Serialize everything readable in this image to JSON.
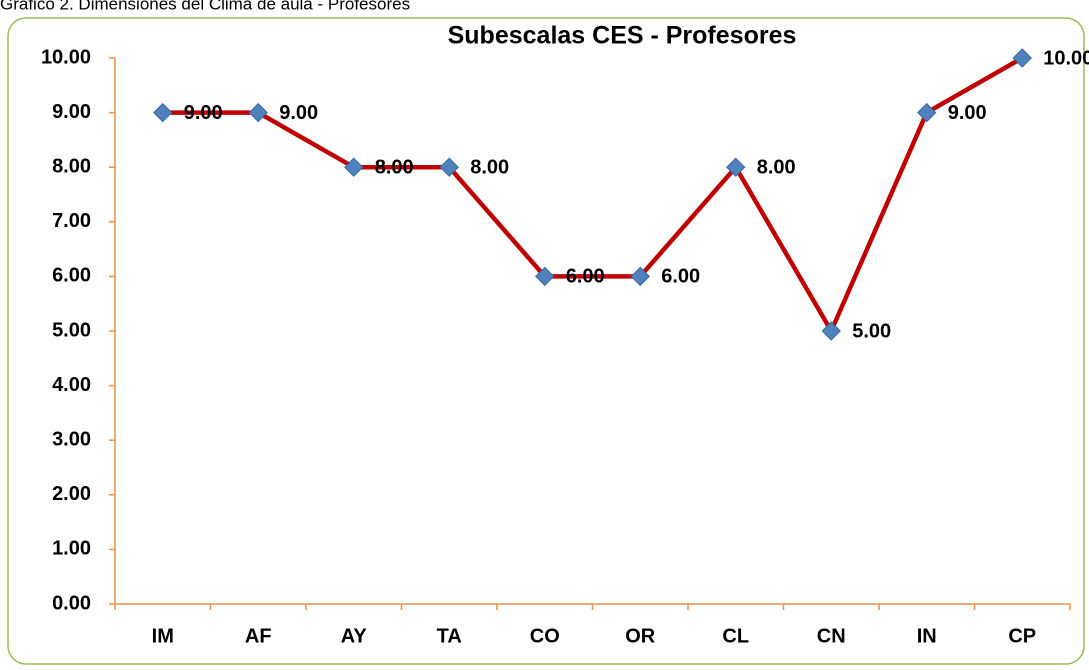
{
  "caption": "Gráfico 2. Dimensiones del Clima de aula - Profesores",
  "chart_data": {
    "type": "line",
    "title": "Subescalas CES - Profesores",
    "categories": [
      "IM",
      "AF",
      "AY",
      "TA",
      "CO",
      "OR",
      "CL",
      "CN",
      "IN",
      "CP"
    ],
    "series": [
      {
        "color": "#c00000",
        "marker_color": "#4f81bd",
        "values": [
          9,
          9,
          8,
          8,
          6,
          6,
          8,
          5,
          9,
          10
        ],
        "value_labels": [
          "9.00",
          "9.00",
          "8.00",
          "8.00",
          "6.00",
          "6.00",
          "8.00",
          "5.00",
          "9.00",
          "10.00"
        ]
      }
    ],
    "ylim": [
      0,
      10
    ],
    "yticks": [
      {
        "value": 0,
        "label": "0.00"
      },
      {
        "value": 1,
        "label": "1.00"
      },
      {
        "value": 2,
        "label": "2.00"
      },
      {
        "value": 3,
        "label": "3.00"
      },
      {
        "value": 4,
        "label": "4.00"
      },
      {
        "value": 5,
        "label": "5.00"
      },
      {
        "value": 6,
        "label": "6.00"
      },
      {
        "value": 7,
        "label": "7.00"
      },
      {
        "value": 8,
        "label": "8.00"
      },
      {
        "value": 9,
        "label": "9.00"
      },
      {
        "value": 10,
        "label": "10.00"
      }
    ],
    "grid": false,
    "axis_color": "#e9914a"
  }
}
